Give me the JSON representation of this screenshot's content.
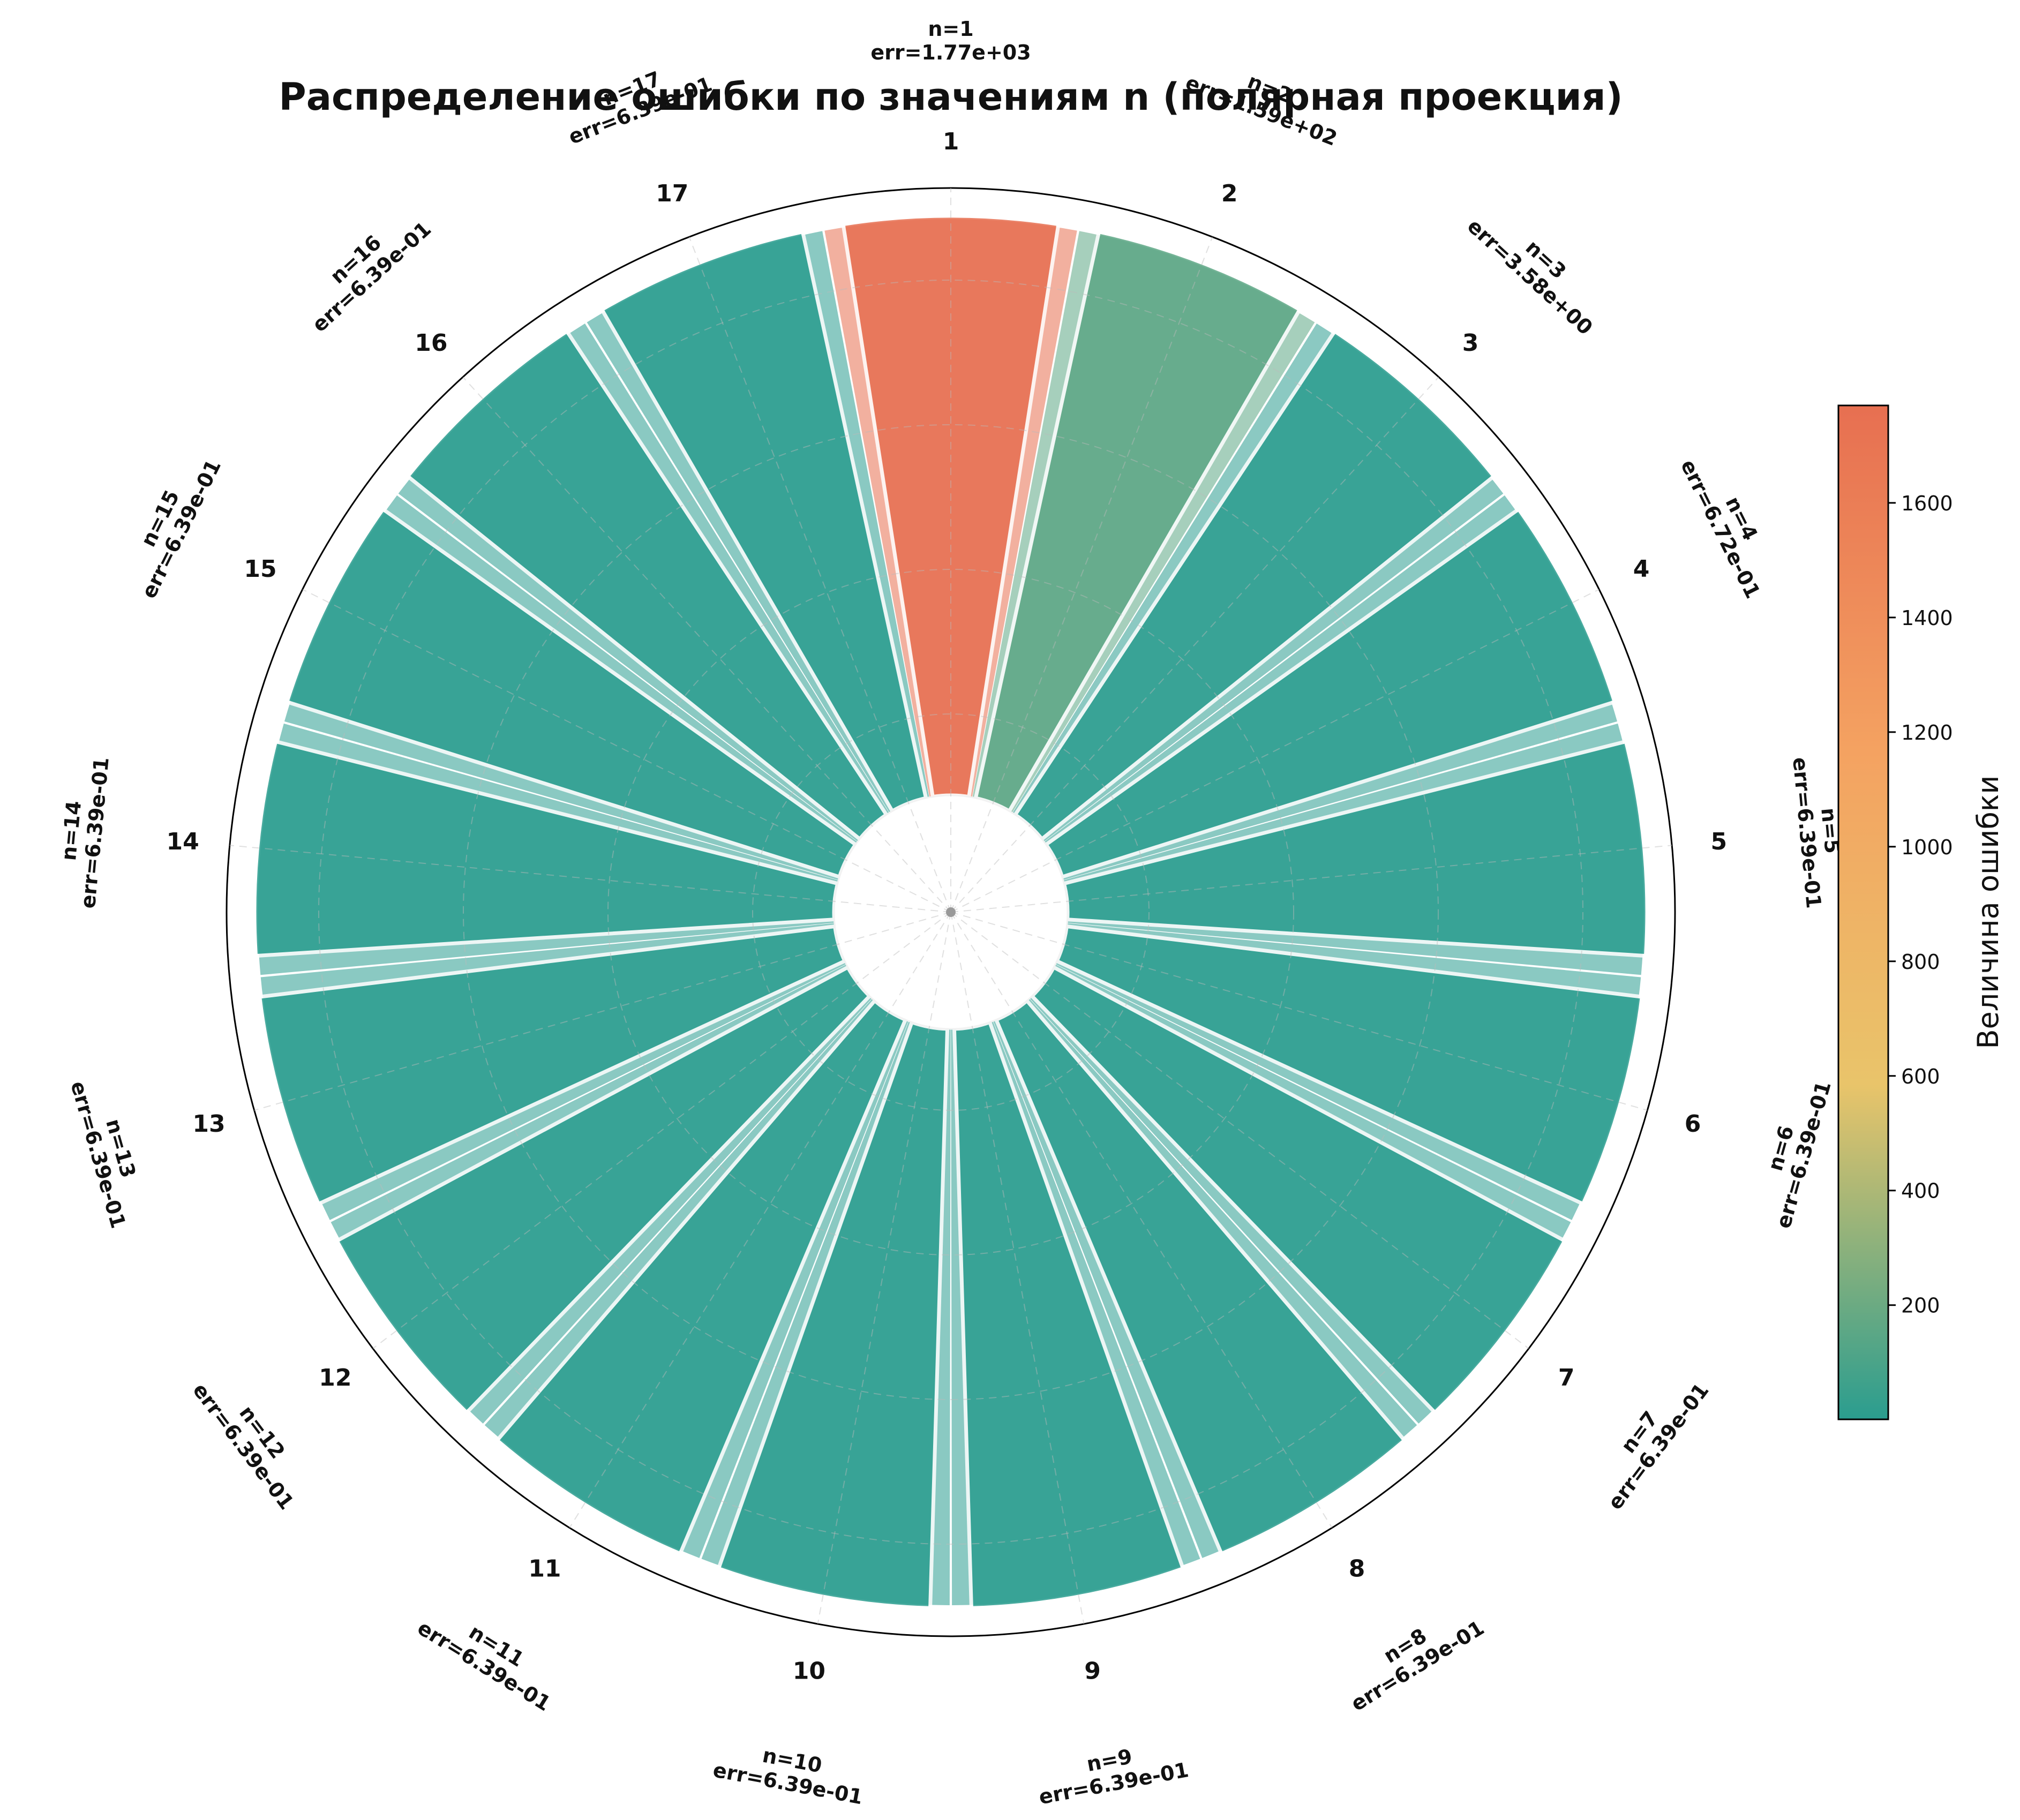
{
  "chart_data": {
    "type": "polar-bar",
    "title": "Распределение ошибки по значениям n (полярная проекция)",
    "categories": [
      "1",
      "2",
      "3",
      "4",
      "5",
      "6",
      "7",
      "8",
      "9",
      "10",
      "11",
      "12",
      "13",
      "14",
      "15",
      "16",
      "17"
    ],
    "series": [
      {
        "values": [
          1770,
          159,
          3.58,
          0.672,
          0.639,
          0.639,
          0.639,
          0.639,
          0.639,
          0.639,
          0.639,
          0.639,
          0.639,
          0.639,
          0.639,
          0.639,
          0.639
        ]
      }
    ],
    "bar_labels": [
      [
        "n=1",
        "err=1.77e+03"
      ],
      [
        "n=2",
        "err=1.59e+02"
      ],
      [
        "n=3",
        "err=3.58e+00"
      ],
      [
        "n=4",
        "err=6.72e-01"
      ],
      [
        "n=5",
        "err=6.39e-01"
      ],
      [
        "n=6",
        "err=6.39e-01"
      ],
      [
        "n=7",
        "err=6.39e-01"
      ],
      [
        "n=8",
        "err=6.39e-01"
      ],
      [
        "n=9",
        "err=6.39e-01"
      ],
      [
        "n=10",
        "err=6.39e-01"
      ],
      [
        "n=11",
        "err=6.39e-01"
      ],
      [
        "n=12",
        "err=6.39e-01"
      ],
      [
        "n=13",
        "err=6.39e-01"
      ],
      [
        "n=14",
        "err=6.39e-01"
      ],
      [
        "n=15",
        "err=6.39e-01"
      ],
      [
        "n=16",
        "err=6.39e-01"
      ],
      [
        "n=17",
        "err=6.39e-01"
      ]
    ],
    "colorbar": {
      "label": "Величина ошибки",
      "ticks": [
        200,
        400,
        600,
        800,
        1000,
        1200,
        1400,
        1600
      ],
      "range": [
        0.639,
        1770
      ],
      "colors": [
        "#2a9d8f",
        "#e9c46a",
        "#f4a261",
        "#e76f51"
      ]
    },
    "grid": true
  }
}
